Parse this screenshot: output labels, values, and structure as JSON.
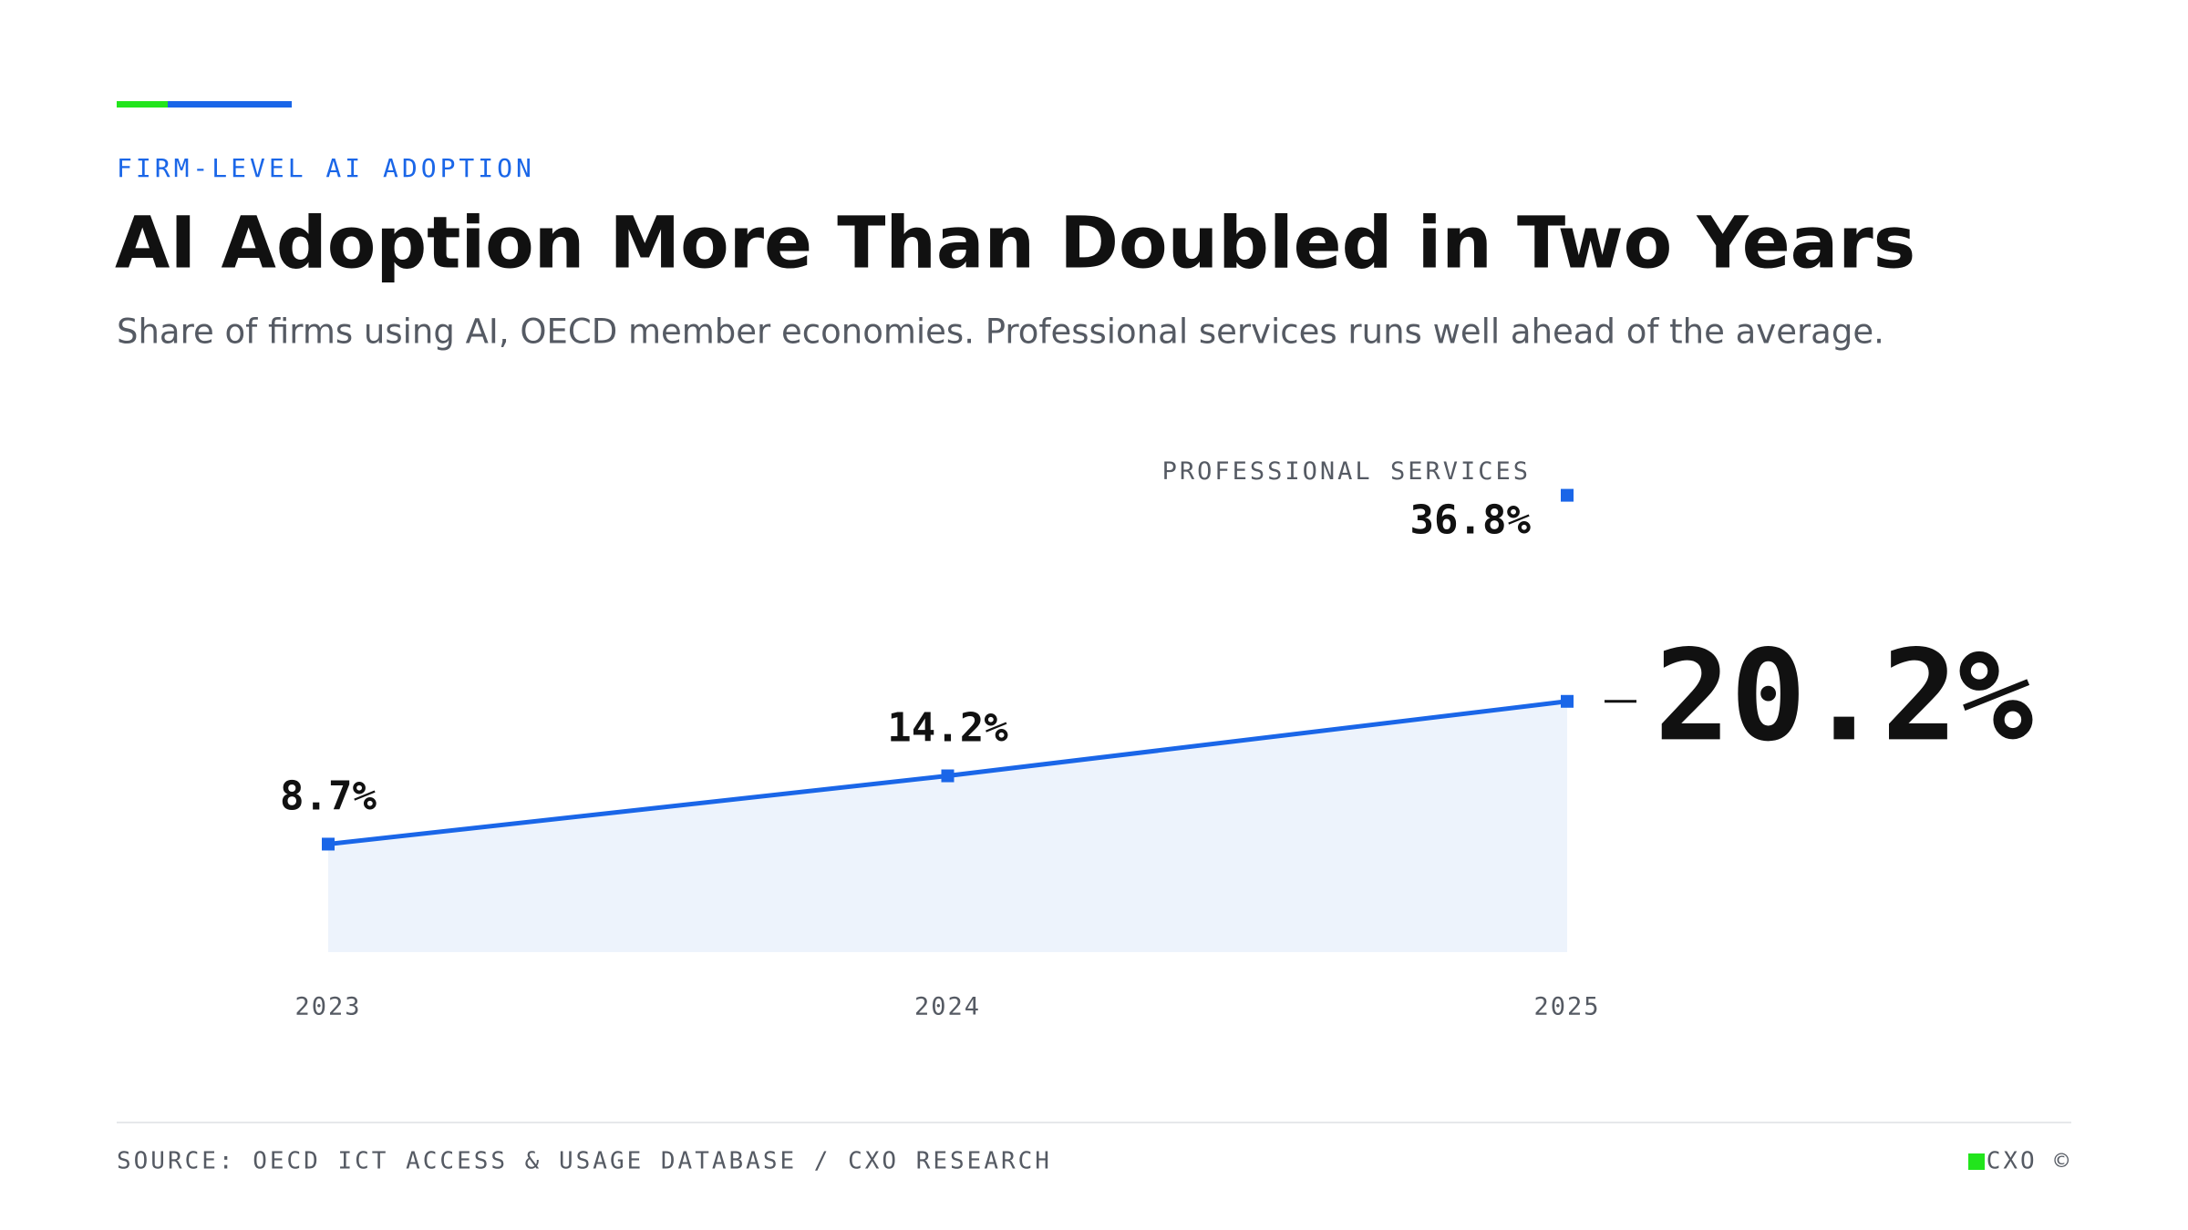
{
  "eyebrow": "FIRM-LEVEL AI ADOPTION",
  "chart_data": {
    "type": "line",
    "title": "AI Adoption More Than Doubled in Two Years",
    "subtitle": "Share of firms using AI, OECD member economies. Professional services runs well ahead of the average.",
    "categories": [
      "2023",
      "2024",
      "2025"
    ],
    "series": [
      {
        "color": "#1a66e8",
        "values": [
          8.7,
          14.2,
          20.2
        ],
        "value_labels": [
          "8.7%",
          "14.2%",
          "20.2%"
        ]
      },
      {
        "name": "PROFESSIONAL SERVICES",
        "color": "#1a66e8",
        "values": [
          null,
          null,
          36.8
        ],
        "value_labels": [
          null,
          null,
          "36.8%"
        ]
      }
    ],
    "area_color": "#edf3fc",
    "ylim": [
      0,
      40
    ],
    "grid": false
  },
  "footer": {
    "source": "SOURCE: OECD ICT ACCESS & USAGE DATABASE / CXO RESEARCH",
    "brand": "CXO ©"
  }
}
